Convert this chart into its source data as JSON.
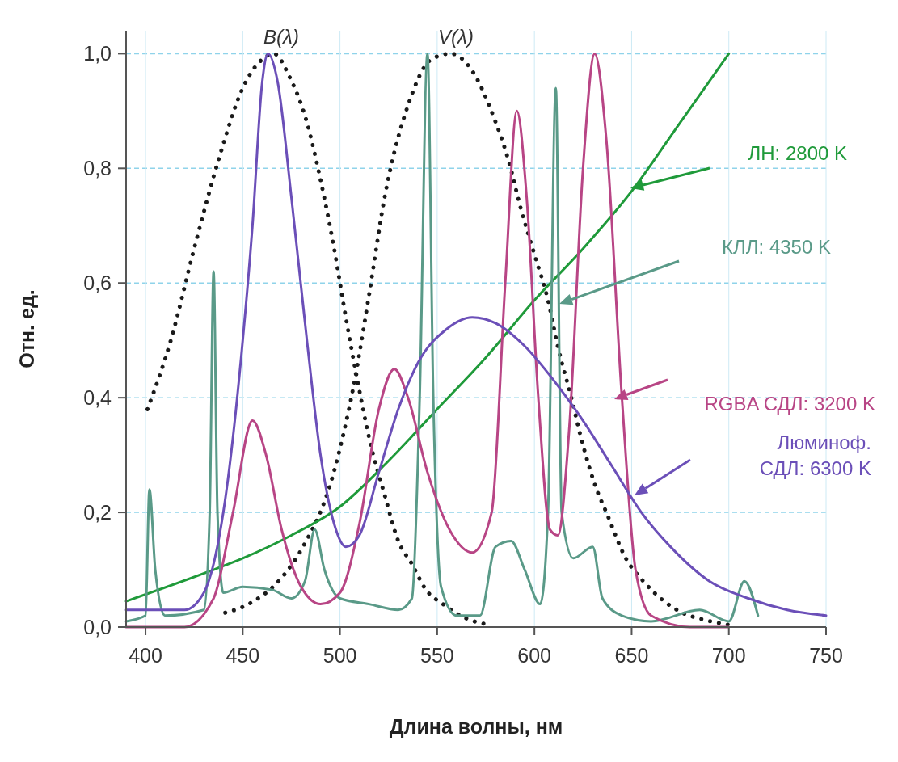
{
  "chart_data": {
    "type": "line",
    "xlabel": "Длина волны, нм",
    "ylabel": "Отн. ед.",
    "xlim": [
      390,
      750
    ],
    "ylim": [
      0,
      1.04
    ],
    "xticks": [
      400,
      450,
      500,
      550,
      600,
      650,
      700,
      750
    ],
    "yticks": [
      {
        "value": 0,
        "label": "0,0"
      },
      {
        "value": 0.2,
        "label": "0,2"
      },
      {
        "value": 0.4,
        "label": "0,4"
      },
      {
        "value": 0.6,
        "label": "0,6"
      },
      {
        "value": 0.8,
        "label": "0,8"
      },
      {
        "value": 1,
        "label": "1,0"
      }
    ],
    "grid": true,
    "series": [
      {
        "name": "B(λ)",
        "color": "#1a1a1a",
        "line_style": "dotted",
        "x": [
          401,
          413,
          425,
          438,
          450,
          460,
          466,
          474,
          483,
          490,
          497,
          503,
          509,
          515,
          523,
          530,
          537,
          544,
          553,
          565,
          575
        ],
        "values": [
          0.38,
          0.5,
          0.66,
          0.82,
          0.94,
          0.99,
          1.0,
          0.96,
          0.88,
          0.78,
          0.66,
          0.54,
          0.43,
          0.33,
          0.23,
          0.15,
          0.11,
          0.066,
          0.04,
          0.015,
          0.005
        ]
      },
      {
        "name": "V(λ)",
        "color": "#1a1a1a",
        "line_style": "dotted",
        "x": [
          441,
          453,
          471,
          481,
          496,
          502,
          507,
          515,
          523,
          535,
          547,
          557,
          568,
          579,
          587,
          593,
          600,
          607,
          612,
          619,
          624,
          632,
          637,
          647,
          656,
          666,
          676,
          687,
          700
        ],
        "values": [
          0.025,
          0.04,
          0.09,
          0.14,
          0.26,
          0.34,
          0.42,
          0.58,
          0.75,
          0.91,
          0.99,
          1.0,
          0.97,
          0.89,
          0.81,
          0.73,
          0.65,
          0.57,
          0.49,
          0.4,
          0.33,
          0.24,
          0.2,
          0.12,
          0.08,
          0.047,
          0.025,
          0.013,
          0.004
        ]
      },
      {
        "name": "ЛН: 2800 K",
        "color": "#1f9a3a",
        "line_style": "solid",
        "x": [
          390,
          435,
          450,
          475,
          500,
          525,
          550,
          575,
          600,
          625,
          650,
          675,
          700
        ],
        "values": [
          0.045,
          0.1,
          0.12,
          0.16,
          0.21,
          0.29,
          0.38,
          0.47,
          0.57,
          0.66,
          0.76,
          0.88,
          1.0
        ]
      },
      {
        "name": "КЛЛ: 4350 K",
        "color": "#5a9a88",
        "line_style": "solid",
        "x": [
          390,
          400,
          402,
          405,
          410,
          430,
          433,
          435,
          437,
          440,
          450,
          465,
          475,
          482,
          487,
          492,
          500,
          515,
          530,
          537,
          541,
          545,
          548,
          552,
          560,
          572,
          580,
          588,
          595,
          603,
          607,
          611,
          614,
          620,
          630,
          635,
          645,
          660,
          685,
          700,
          708,
          715
        ],
        "values": [
          0.01,
          0.02,
          0.24,
          0.1,
          0.02,
          0.03,
          0.2,
          0.62,
          0.2,
          0.06,
          0.07,
          0.065,
          0.05,
          0.08,
          0.17,
          0.1,
          0.05,
          0.04,
          0.03,
          0.05,
          0.4,
          1.0,
          0.4,
          0.07,
          0.02,
          0.02,
          0.14,
          0.15,
          0.1,
          0.04,
          0.2,
          0.94,
          0.2,
          0.12,
          0.14,
          0.05,
          0.02,
          0.01,
          0.03,
          0.01,
          0.08,
          0.02
        ]
      },
      {
        "name": "RGBA СДЛ: 3200 K",
        "color": "#b84585",
        "line_style": "solid",
        "x": [
          390,
          420,
          435,
          445,
          455,
          462,
          470,
          480,
          490,
          500,
          510,
          520,
          528,
          535,
          545,
          558,
          568,
          578,
          585,
          591,
          596,
          602,
          608,
          612,
          618,
          625,
          631,
          637,
          645,
          652,
          660,
          680,
          700
        ],
        "values": [
          0.0,
          0.0,
          0.05,
          0.2,
          0.36,
          0.3,
          0.17,
          0.07,
          0.04,
          0.06,
          0.18,
          0.38,
          0.45,
          0.4,
          0.27,
          0.16,
          0.13,
          0.2,
          0.6,
          0.9,
          0.75,
          0.4,
          0.17,
          0.16,
          0.35,
          0.8,
          1.0,
          0.85,
          0.4,
          0.1,
          0.02,
          0.0,
          0.0
        ]
      },
      {
        "name": "Люминоф. СДЛ: 6300 K",
        "color": "#6b4fb8",
        "line_style": "solid",
        "x": [
          390,
          400,
          420,
          430,
          440,
          450,
          455,
          460,
          463,
          468,
          475,
          483,
          490,
          497,
          503,
          510,
          520,
          530,
          540,
          555,
          568,
          580,
          595,
          610,
          625,
          640,
          655,
          670,
          690,
          710,
          730,
          750
        ],
        "values": [
          0.03,
          0.03,
          0.03,
          0.06,
          0.2,
          0.5,
          0.7,
          0.95,
          1.0,
          0.95,
          0.75,
          0.5,
          0.3,
          0.18,
          0.14,
          0.16,
          0.27,
          0.38,
          0.46,
          0.52,
          0.54,
          0.53,
          0.49,
          0.43,
          0.36,
          0.28,
          0.2,
          0.14,
          0.08,
          0.05,
          0.03,
          0.02
        ]
      }
    ]
  }
}
